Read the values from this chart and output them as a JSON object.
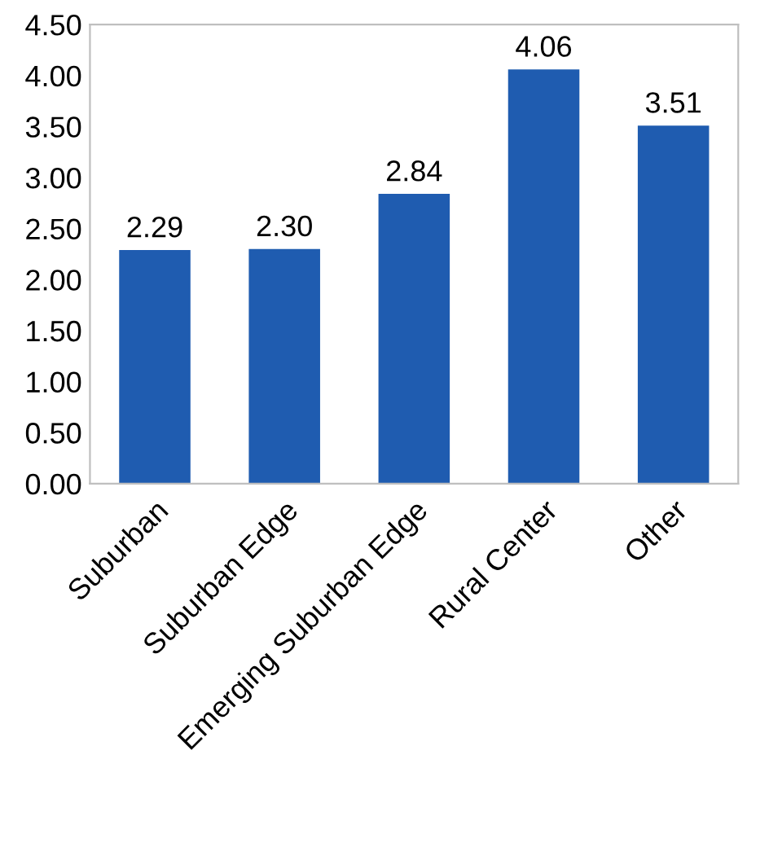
{
  "chart_data": {
    "type": "bar",
    "categories": [
      "Suburban",
      "Suburban Edge",
      "Emerging Suburban Edge",
      "Rural Center",
      "Other"
    ],
    "values": [
      2.29,
      2.3,
      2.84,
      4.06,
      3.51
    ],
    "value_labels": [
      "2.29",
      "2.30",
      "2.84",
      "4.06",
      "3.51"
    ],
    "color": "#1f5cb0",
    "ylim": [
      0,
      4.5
    ],
    "yticks": [
      {
        "value": 0,
        "label": "0.00"
      },
      {
        "value": 0.5,
        "label": "0.50"
      },
      {
        "value": 1,
        "label": "1.00"
      },
      {
        "value": 1.5,
        "label": "1.50"
      },
      {
        "value": 2,
        "label": "2.00"
      },
      {
        "value": 2.5,
        "label": "2.50"
      },
      {
        "value": 3,
        "label": "3.00"
      },
      {
        "value": 3.5,
        "label": "3.50"
      },
      {
        "value": 4,
        "label": "4.00"
      },
      {
        "value": 4.5,
        "label": "4.50"
      }
    ],
    "grid": false
  }
}
